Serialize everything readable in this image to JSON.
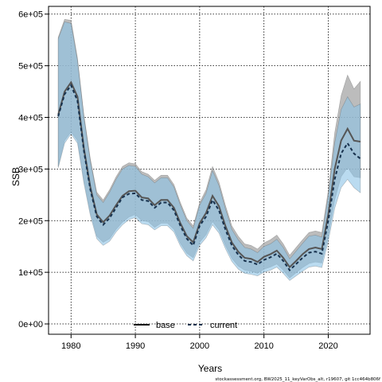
{
  "chart_data": {
    "type": "area",
    "xlabel": "Years",
    "ylabel": "SSB",
    "xlim": [
      1976.5,
      2026.5
    ],
    "ylim": [
      -20000,
      615000
    ],
    "x_ticks": [
      1980,
      1990,
      2000,
      2010,
      2020
    ],
    "y_ticks": [
      0,
      100000,
      200000,
      300000,
      400000,
      500000,
      600000
    ],
    "y_tick_labels": [
      "0e+00",
      "1e+05",
      "2e+05",
      "3e+05",
      "4e+05",
      "5e+05",
      "6e+05"
    ],
    "grid": true,
    "legend_position": "bottom-center",
    "x": [
      1978,
      1979,
      1980,
      1981,
      1982,
      1983,
      1984,
      1985,
      1986,
      1987,
      1988,
      1989,
      1990,
      1991,
      1992,
      1993,
      1994,
      1995,
      1996,
      1997,
      1998,
      1999,
      2000,
      2001,
      2002,
      2003,
      2004,
      2005,
      2006,
      2007,
      2008,
      2009,
      2010,
      2011,
      2012,
      2013,
      2014,
      2015,
      2016,
      2017,
      2018,
      2019,
      2020,
      2021,
      2022,
      2023,
      2024,
      2025
    ],
    "series": [
      {
        "name": "base",
        "color": "#555555",
        "band_color": "#a6a6a6",
        "line_style": "solid",
        "values": [
          405000,
          450000,
          468000,
          440000,
          340000,
          265000,
          212000,
          197000,
          210000,
          230000,
          248000,
          257000,
          258000,
          245000,
          243000,
          230000,
          240000,
          240000,
          225000,
          195000,
          170000,
          158000,
          195000,
          215000,
          248000,
          228000,
          190000,
          158000,
          140000,
          128000,
          126000,
          120000,
          130000,
          135000,
          142000,
          128000,
          110000,
          122000,
          135000,
          145000,
          148000,
          145000,
          212000,
          300000,
          355000,
          378000,
          355000,
          353000
        ],
        "lower": [
          305000,
          355000,
          372000,
          355000,
          278000,
          215000,
          170000,
          158000,
          165000,
          183000,
          197000,
          207000,
          212000,
          200000,
          198000,
          187000,
          195000,
          195000,
          183000,
          156000,
          137000,
          128000,
          158000,
          173000,
          198000,
          182000,
          152000,
          127000,
          112000,
          104000,
          102000,
          98000,
          106000,
          110000,
          116000,
          104000,
          89000,
          99000,
          109000,
          117000,
          120000,
          118000,
          170000,
          240000,
          285000,
          303000,
          285000,
          283000
        ],
        "upper": [
          555000,
          590000,
          588000,
          515000,
          405000,
          320000,
          255000,
          240000,
          260000,
          285000,
          305000,
          312000,
          310000,
          295000,
          290000,
          278000,
          288000,
          288000,
          270000,
          235000,
          205000,
          190000,
          235000,
          260000,
          305000,
          275000,
          230000,
          190000,
          170000,
          155000,
          152000,
          145000,
          157000,
          163000,
          172000,
          155000,
          133000,
          148000,
          163000,
          177000,
          180000,
          177000,
          258000,
          370000,
          442000,
          482000,
          455000,
          470000
        ]
      },
      {
        "name": "current",
        "color": "#17314d",
        "band_color": "#8cc3e6",
        "line_style": "dashed",
        "values": [
          402000,
          445000,
          462000,
          432000,
          335000,
          260000,
          208000,
          192000,
          205000,
          225000,
          245000,
          252000,
          253000,
          240000,
          238000,
          225000,
          235000,
          235000,
          220000,
          190000,
          165000,
          152000,
          190000,
          208000,
          240000,
          220000,
          183000,
          152000,
          134000,
          122000,
          120000,
          115000,
          124000,
          129000,
          136000,
          122000,
          104000,
          116000,
          128000,
          138000,
          140000,
          136000,
          200000,
          280000,
          330000,
          350000,
          330000,
          320000
        ],
        "lower": [
          302000,
          350000,
          368000,
          350000,
          272000,
          210000,
          165000,
          152000,
          160000,
          178000,
          192000,
          202000,
          206000,
          194000,
          192000,
          182000,
          190000,
          190000,
          178000,
          151000,
          132000,
          122000,
          152000,
          167000,
          192000,
          176000,
          146000,
          121000,
          106000,
          98000,
          96000,
          93000,
          100000,
          104000,
          110000,
          98000,
          84000,
          93000,
          102000,
          110000,
          112000,
          109000,
          160000,
          224000,
          264000,
          280000,
          264000,
          254000
        ],
        "upper": [
          552000,
          585000,
          582000,
          510000,
          400000,
          315000,
          250000,
          235000,
          255000,
          280000,
          300000,
          307000,
          305000,
          290000,
          285000,
          273000,
          283000,
          283000,
          265000,
          230000,
          200000,
          185000,
          230000,
          253000,
          297000,
          268000,
          223000,
          183000,
          163000,
          148000,
          145000,
          138000,
          150000,
          155000,
          164000,
          148000,
          126000,
          141000,
          156000,
          170000,
          172000,
          168000,
          248000,
          350000,
          415000,
          440000,
          420000,
          426000
        ]
      }
    ],
    "footnote": "stockassessment.org, BW2025_11_keyVarObs_alt, r19607, git 1cc464b806f"
  }
}
